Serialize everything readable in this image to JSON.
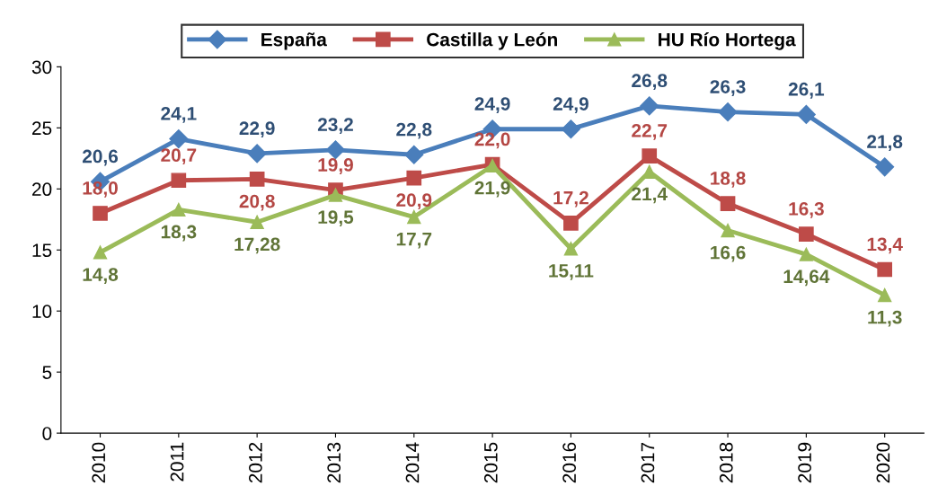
{
  "chart_data": {
    "type": "line",
    "categories": [
      "2010",
      "2011",
      "2012",
      "2013",
      "2014",
      "2015",
      "2016",
      "2017",
      "2018",
      "2019",
      "2020"
    ],
    "series": [
      {
        "name": "España",
        "color": "#4a7ebb",
        "marker": "diamond",
        "values": [
          20.6,
          24.1,
          22.9,
          23.2,
          22.8,
          24.9,
          24.9,
          26.8,
          26.3,
          26.1,
          21.8
        ],
        "value_labels": [
          "20,6",
          "24,1",
          "22,9",
          "23,2",
          "22,8",
          "24,9",
          "24,9",
          "26,8",
          "26,3",
          "26,1",
          "21,8"
        ]
      },
      {
        "name": "Castilla y León",
        "color": "#be4b48",
        "marker": "square",
        "values": [
          18.0,
          20.7,
          20.8,
          19.9,
          20.9,
          22.0,
          17.2,
          22.7,
          18.8,
          16.3,
          13.4
        ],
        "value_labels": [
          "18,0",
          "20,7",
          "20,8",
          "19,9",
          "20,9",
          "22,0",
          "17,2",
          "22,7",
          "18,8",
          "16,3",
          "13,4"
        ]
      },
      {
        "name": "HU Río Hortega",
        "color": "#9bbb59",
        "marker": "triangle",
        "values": [
          14.8,
          18.3,
          17.28,
          19.5,
          17.7,
          21.9,
          15.11,
          21.4,
          16.6,
          14.64,
          11.3
        ],
        "value_labels": [
          "14,8",
          "18,3",
          "17,28",
          "19,5",
          "17,7",
          "21,9",
          "15,11",
          "21,4",
          "16,6",
          "14,64",
          "11,3"
        ]
      }
    ],
    "ylim": [
      0,
      30
    ],
    "yticks": [
      0,
      5,
      10,
      15,
      20,
      25,
      30
    ],
    "grid": false,
    "legend": "top",
    "line_style": "solid"
  }
}
